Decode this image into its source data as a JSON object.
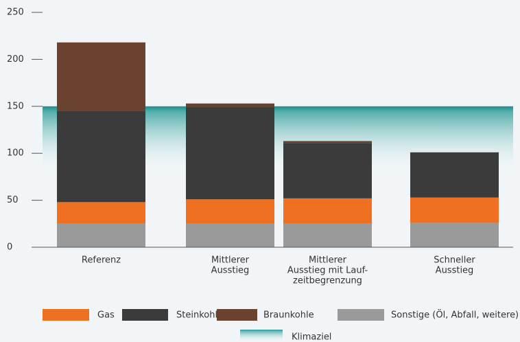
{
  "chart_data": {
    "type": "bar",
    "stacked": true,
    "categories": [
      [
        "Referenz"
      ],
      [
        "Mittlerer",
        "Ausstieg"
      ],
      [
        "Mittlerer",
        "Ausstieg mit Lauf-",
        "zeitbegrenzung"
      ],
      [
        "Schneller",
        "Ausstieg"
      ]
    ],
    "series": [
      {
        "name": "Gas",
        "color": "#f07022",
        "values": [
          23,
          26,
          27,
          27
        ]
      },
      {
        "name": "Steinkohle",
        "color": "#3b3b3b",
        "values": [
          97,
          98,
          59,
          48
        ]
      },
      {
        "name": "Braunkohle",
        "color": "#6b4130",
        "values": [
          73,
          4,
          2,
          0
        ]
      },
      {
        "name": "Sonstige (Öl, Abfall, weitere)",
        "color": "#9a9a9a",
        "values": [
          25,
          25,
          25,
          26
        ]
      }
    ],
    "klimaziel": {
      "label": "Klimaziel",
      "value": 150,
      "color": "#1a8f8c"
    },
    "ylim": [
      0,
      250
    ],
    "yticks": [
      0,
      50,
      100,
      150,
      200,
      250
    ]
  }
}
